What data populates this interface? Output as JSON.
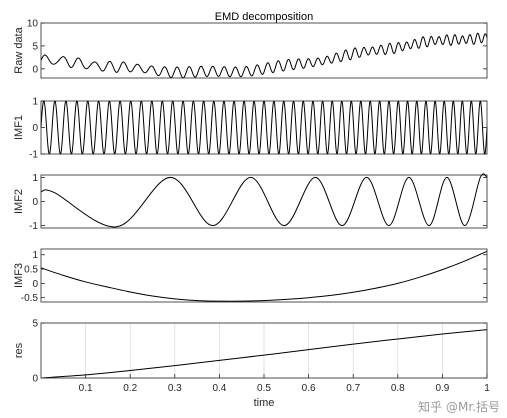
{
  "figure": {
    "title": "EMD decomposition",
    "watermark": "知乎 @Mr.括号",
    "colors": {
      "line": "#000000",
      "axis": "#262626",
      "grid": "#dcdcdc",
      "background": "#ffffff"
    }
  },
  "chart_data": [
    {
      "type": "line",
      "name": "raw",
      "ylabel": "Raw data",
      "xlim": [
        0,
        1
      ],
      "ylim": [
        -2,
        10
      ],
      "yticks": [
        0,
        5,
        10
      ],
      "xticks": [],
      "grid": false,
      "series": [
        {
          "formula": "0.2*sin(2*pi*6*t) + sin(2*pi*25*t*(1+0.7*t)) + 0.3 + 1.8*sin(2*pi*t+2.1) + 0.2*sin(2*pi*40*t) + 5*t^2",
          "color": "#000000"
        }
      ]
    },
    {
      "type": "line",
      "name": "imf1",
      "ylabel": "IMF1",
      "xlim": [
        0,
        1
      ],
      "ylim": [
        -1,
        1
      ],
      "yticks": [
        -1,
        0,
        1
      ],
      "xticks": [],
      "grid": false,
      "series": [
        {
          "formula": "sin(2*pi*(40*t + 5*t^2))",
          "cycles_visible": 45,
          "color": "#000000"
        }
      ]
    },
    {
      "type": "line",
      "name": "imf2",
      "ylabel": "IMF2",
      "xlim": [
        0,
        1
      ],
      "ylim": [
        -1.1,
        1.1
      ],
      "yticks": [
        -1,
        0,
        1
      ],
      "xticks": [],
      "grid": false,
      "series": [
        {
          "x": [
            0,
            0.03,
            0.17,
            0.29,
            0.385,
            0.47,
            0.545,
            0.615,
            0.675,
            0.73,
            0.78,
            0.825,
            0.87,
            0.91,
            0.95,
            0.985,
            1.0
          ],
          "y": [
            0.4,
            0.37,
            -1.05,
            1.0,
            -1.0,
            1.0,
            -1.0,
            1.0,
            -1.0,
            1.0,
            -1.0,
            1.0,
            -1.0,
            1.0,
            -1.0,
            1.0,
            1.0
          ],
          "color": "#000000"
        }
      ]
    },
    {
      "type": "line",
      "name": "imf3",
      "ylabel": "IMF3",
      "xlim": [
        0,
        1
      ],
      "ylim": [
        -0.65,
        1.2
      ],
      "yticks": [
        -0.5,
        0,
        0.5,
        1
      ],
      "ytick_labels": [
        "-0.5",
        "0",
        "0.5",
        "1"
      ],
      "xticks": [],
      "grid": false,
      "series": [
        {
          "x": [
            0,
            0.05,
            0.1,
            0.15,
            0.2,
            0.25,
            0.3,
            0.35,
            0.4,
            0.45,
            0.5,
            0.55,
            0.6,
            0.65,
            0.7,
            0.75,
            0.8,
            0.85,
            0.9,
            0.95,
            1.0
          ],
          "y": [
            0.54,
            0.28,
            0.05,
            -0.13,
            -0.3,
            -0.44,
            -0.54,
            -0.6,
            -0.62,
            -0.62,
            -0.6,
            -0.56,
            -0.5,
            -0.42,
            -0.31,
            -0.17,
            0.0,
            0.22,
            0.48,
            0.78,
            1.12
          ],
          "color": "#000000"
        }
      ]
    },
    {
      "type": "line",
      "name": "res",
      "ylabel": "res",
      "xlabel": "time",
      "xlim": [
        0,
        1
      ],
      "ylim": [
        0,
        5
      ],
      "yticks": [
        0,
        5
      ],
      "xticks": [
        0.1,
        0.2,
        0.3,
        0.4,
        0.5,
        0.6,
        0.7,
        0.8,
        0.9,
        1
      ],
      "xtick_labels": [
        "0.1",
        "0.2",
        "0.3",
        "0.4",
        "0.5",
        "0.6",
        "0.7",
        "0.8",
        "0.9",
        "1"
      ],
      "grid": true,
      "series": [
        {
          "x": [
            0,
            0.1,
            0.2,
            0.3,
            0.4,
            0.5,
            0.6,
            0.7,
            0.8,
            0.9,
            1.0
          ],
          "y": [
            0.0,
            0.28,
            0.68,
            1.12,
            1.6,
            2.08,
            2.58,
            3.08,
            3.55,
            4.0,
            4.4
          ],
          "color": "#000000"
        }
      ]
    }
  ]
}
